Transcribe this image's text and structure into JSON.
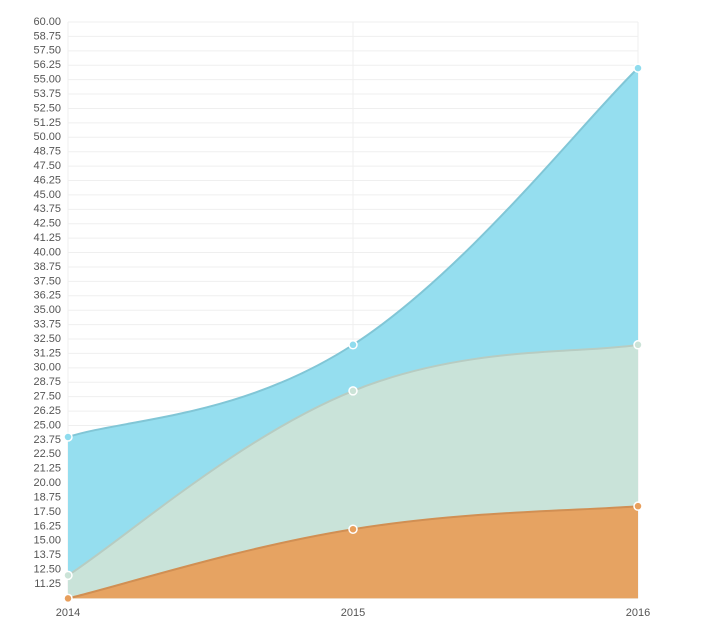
{
  "chart_data": {
    "type": "area",
    "categories": [
      "2014",
      "2015",
      "2016"
    ],
    "series": [
      {
        "color": "#8fdcee",
        "values": [
          24,
          32,
          56
        ]
      },
      {
        "color": "#cbe3d7",
        "values": [
          12,
          28,
          32
        ]
      },
      {
        "color": "#e89f5c",
        "values": [
          10,
          16,
          18
        ]
      }
    ],
    "ylim": [
      10,
      60
    ],
    "yticks": [
      11.25,
      {
        "value": 12.5,
        "label": "12.50"
      },
      13.75,
      {
        "value": 15,
        "label": "15.00"
      },
      16.25,
      {
        "value": 17.5,
        "label": "17.50"
      },
      18.75,
      {
        "value": 20,
        "label": "20.00"
      },
      21.25,
      {
        "value": 22.5,
        "label": "22.50"
      },
      23.75,
      {
        "value": 25,
        "label": "25.00"
      },
      26.25,
      {
        "value": 27.5,
        "label": "27.50"
      },
      28.75,
      {
        "value": 30,
        "label": "30.00"
      },
      31.25,
      {
        "value": 32.5,
        "label": "32.50"
      },
      33.75,
      {
        "value": 35,
        "label": "35.00"
      },
      36.25,
      {
        "value": 37.5,
        "label": "37.50"
      },
      38.75,
      {
        "value": 40,
        "label": "40.00"
      },
      41.25,
      {
        "value": 42.5,
        "label": "42.50"
      },
      43.75,
      {
        "value": 45,
        "label": "45.00"
      },
      46.25,
      {
        "value": 47.5,
        "label": "47.50"
      },
      48.75,
      {
        "value": 50,
        "label": "50.00"
      },
      51.25,
      {
        "value": 52.5,
        "label": "52.50"
      },
      53.75,
      {
        "value": 55,
        "label": "55.00"
      },
      56.25,
      {
        "value": 57.5,
        "label": "57.50"
      },
      58.75,
      {
        "value": 60,
        "label": "60.00"
      }
    ],
    "grid": true
  }
}
